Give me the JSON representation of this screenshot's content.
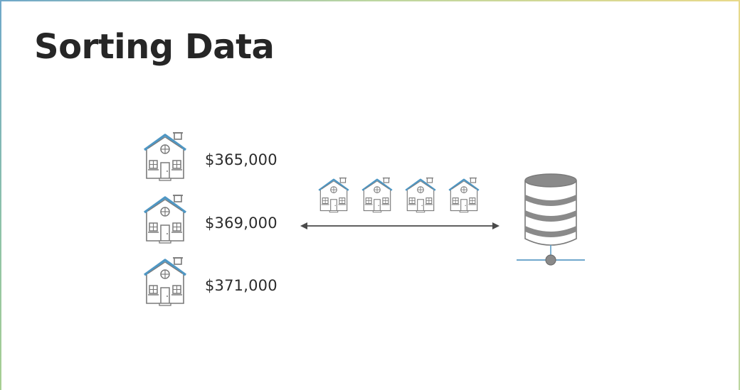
{
  "slide": {
    "title": "Sorting Data"
  },
  "listings": [
    {
      "price": "$365,000"
    },
    {
      "price": "$369,000"
    },
    {
      "price": "$371,000"
    }
  ],
  "icons": {
    "house": "house-icon",
    "database": "database-server-icon",
    "arrow": "double-headed-arrow-icon"
  },
  "colors": {
    "roof": "#4f97c4",
    "outline": "#7a7a7a",
    "text": "#262626",
    "db_gray": "#8a8a8a",
    "network_line": "#5b9cc6"
  }
}
